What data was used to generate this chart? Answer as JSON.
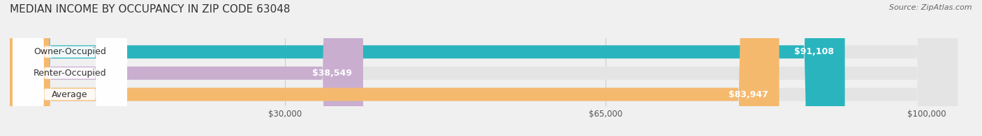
{
  "title": "MEDIAN INCOME BY OCCUPANCY IN ZIP CODE 63048",
  "source": "Source: ZipAtlas.com",
  "categories": [
    "Owner-Occupied",
    "Renter-Occupied",
    "Average"
  ],
  "values": [
    91108,
    38549,
    83947
  ],
  "bar_colors": [
    "#2ab5be",
    "#c9aed0",
    "#f5b96e"
  ],
  "value_labels": [
    "$91,108",
    "$38,549",
    "$83,947"
  ],
  "x_ticks": [
    30000,
    65000,
    100000
  ],
  "x_tick_labels": [
    "$30,000",
    "$65,000",
    "$100,000"
  ],
  "xlim": [
    0,
    105000
  ],
  "background_color": "#f0f0f0",
  "bar_background_color": "#e4e4e4",
  "title_fontsize": 11,
  "source_fontsize": 8,
  "label_fontsize": 9,
  "tick_fontsize": 8.5
}
